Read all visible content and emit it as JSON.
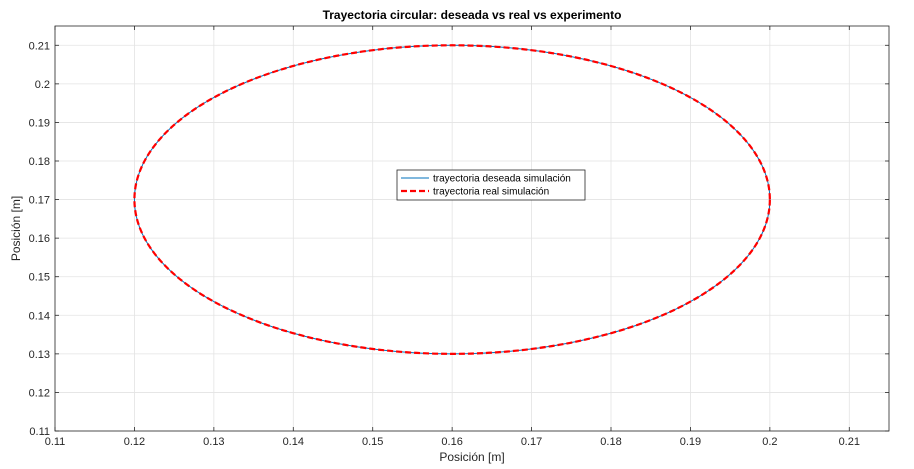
{
  "chart_data": {
    "type": "line",
    "title": "Trayectoria circular: deseada vs real vs experimento",
    "xlabel": "Posición [m]",
    "ylabel": "Posición [m]",
    "xlim": [
      0.11,
      0.215
    ],
    "ylim": [
      0.11,
      0.215
    ],
    "xticks": [
      0.11,
      0.12,
      0.13,
      0.14,
      0.15,
      0.16,
      0.17,
      0.18,
      0.19,
      0.2,
      0.21
    ],
    "yticks": [
      0.11,
      0.12,
      0.13,
      0.14,
      0.15,
      0.16,
      0.17,
      0.18,
      0.19,
      0.2,
      0.21
    ],
    "xtick_labels": [
      "0.11",
      "0.12",
      "0.13",
      "0.14",
      "0.15",
      "0.16",
      "0.17",
      "0.18",
      "0.19",
      "0.2",
      "0.21"
    ],
    "ytick_labels": [
      "0.11",
      "0.12",
      "0.13",
      "0.14",
      "0.15",
      "0.16",
      "0.17",
      "0.18",
      "0.19",
      "0.2",
      "0.21"
    ],
    "grid": true,
    "legend_position": "center",
    "series": [
      {
        "name": "trayectoria deseada simulación",
        "color": "#0072BD",
        "style": "solid",
        "shape": "circle",
        "center": [
          0.16,
          0.17
        ],
        "radius": 0.04
      },
      {
        "name": "trayectoria real simulación",
        "color": "#FF0000",
        "style": "dashed",
        "shape": "circle",
        "center": [
          0.16,
          0.17
        ],
        "radius": 0.04
      }
    ]
  }
}
